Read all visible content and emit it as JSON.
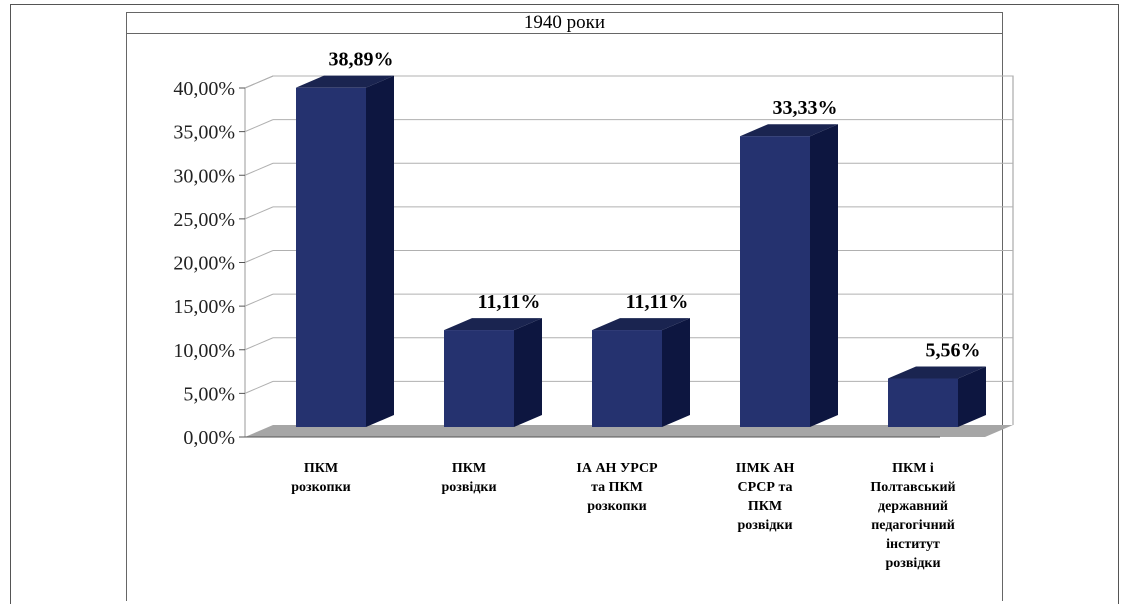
{
  "chart_data": {
    "type": "bar",
    "title": "1940 роки",
    "categories": [
      [
        "ПКМ",
        "розкопки"
      ],
      [
        "ПКМ",
        "розвідки"
      ],
      [
        "ІА АН УРСР",
        "та ПКМ",
        "розкопки"
      ],
      [
        "ІІМК АН",
        "СРСР та",
        "ПКМ",
        "розвідки"
      ],
      [
        "ПКМ і",
        "Полтавський",
        "державний",
        "педагогічний",
        "інститут",
        "розвідки"
      ]
    ],
    "values": [
      38.89,
      11.11,
      11.11,
      33.33,
      5.56
    ],
    "value_labels": [
      "38,89%",
      "11,11%",
      "11,11%",
      "33,33%",
      "5,56%"
    ],
    "ylim": [
      0,
      40
    ],
    "yticks": [
      0,
      5,
      10,
      15,
      20,
      25,
      30,
      35,
      40
    ],
    "ytick_labels": [
      "0,00%",
      "5,00%",
      "10,00%",
      "15,00%",
      "20,00%",
      "25,00%",
      "30,00%",
      "35,00%",
      "40,00%"
    ],
    "xlabel": "",
    "ylabel": "",
    "grid": true,
    "legend": "none",
    "style": "3d-column",
    "colors": {
      "bar_front": "#25326f",
      "bar_side": "#0d1640",
      "bar_top": "#1a2450",
      "floor": "#a6a6a6",
      "grid": "#b0b0b0"
    }
  }
}
